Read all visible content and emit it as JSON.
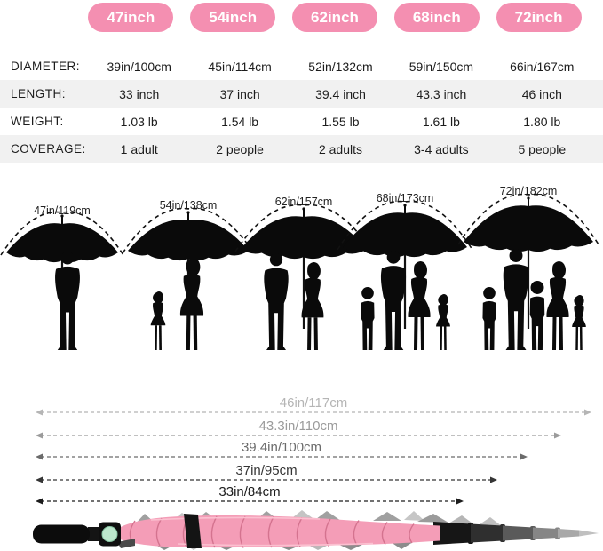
{
  "header": {
    "badge_color": "#f48fb1",
    "sizes": [
      "47inch",
      "54inch",
      "62inch",
      "68inch",
      "72inch"
    ]
  },
  "spec_table": {
    "rows": [
      {
        "label": "DIAMETER:",
        "values": [
          "39in/100cm",
          "45in/114cm",
          "52in/132cm",
          "59in/150cm",
          "66in/167cm"
        ]
      },
      {
        "label": "LENGTH:",
        "values": [
          "33 inch",
          "37 inch",
          "39.4 inch",
          "43.3 inch",
          "46 inch"
        ]
      },
      {
        "label": "WEIGHT:",
        "values": [
          "1.03 lb",
          "1.54 lb",
          "1.55 lb",
          "1.61 lb",
          "1.80 lb"
        ]
      },
      {
        "label": "COVERAGE:",
        "values": [
          "1 adult",
          "2 people",
          "2 adults",
          "3-4 adults",
          "5 people"
        ]
      }
    ]
  },
  "size_scene": {
    "umbrellas": [
      {
        "label": "47in/119cm",
        "people": [
          "man"
        ]
      },
      {
        "label": "54in/138cm",
        "people": [
          "girl",
          "woman"
        ]
      },
      {
        "label": "62in/157cm",
        "people": [
          "man",
          "woman"
        ]
      },
      {
        "label": "68in/173cm",
        "people": [
          "boy",
          "man",
          "woman",
          "girl"
        ]
      },
      {
        "label": "72in/182cm",
        "people": [
          "boy",
          "man",
          "boy",
          "woman",
          "girl"
        ]
      }
    ]
  },
  "length_arrows": [
    {
      "label": "46in/117cm",
      "color": "#b5b5b5"
    },
    {
      "label": "43.3in/110cm",
      "color": "#9b9b9b"
    },
    {
      "label": "39.4in/100cm",
      "color": "#6b6b6b"
    },
    {
      "label": "37in/95cm",
      "color": "#353535"
    },
    {
      "label": "33in/84cm",
      "color": "#1c1c1c"
    }
  ],
  "product": {
    "canopy_pink": "#f49db7",
    "fold_pink": "#d4738f",
    "highlight_pink": "#fbc0d0",
    "button_mint": "#bce7cc"
  }
}
